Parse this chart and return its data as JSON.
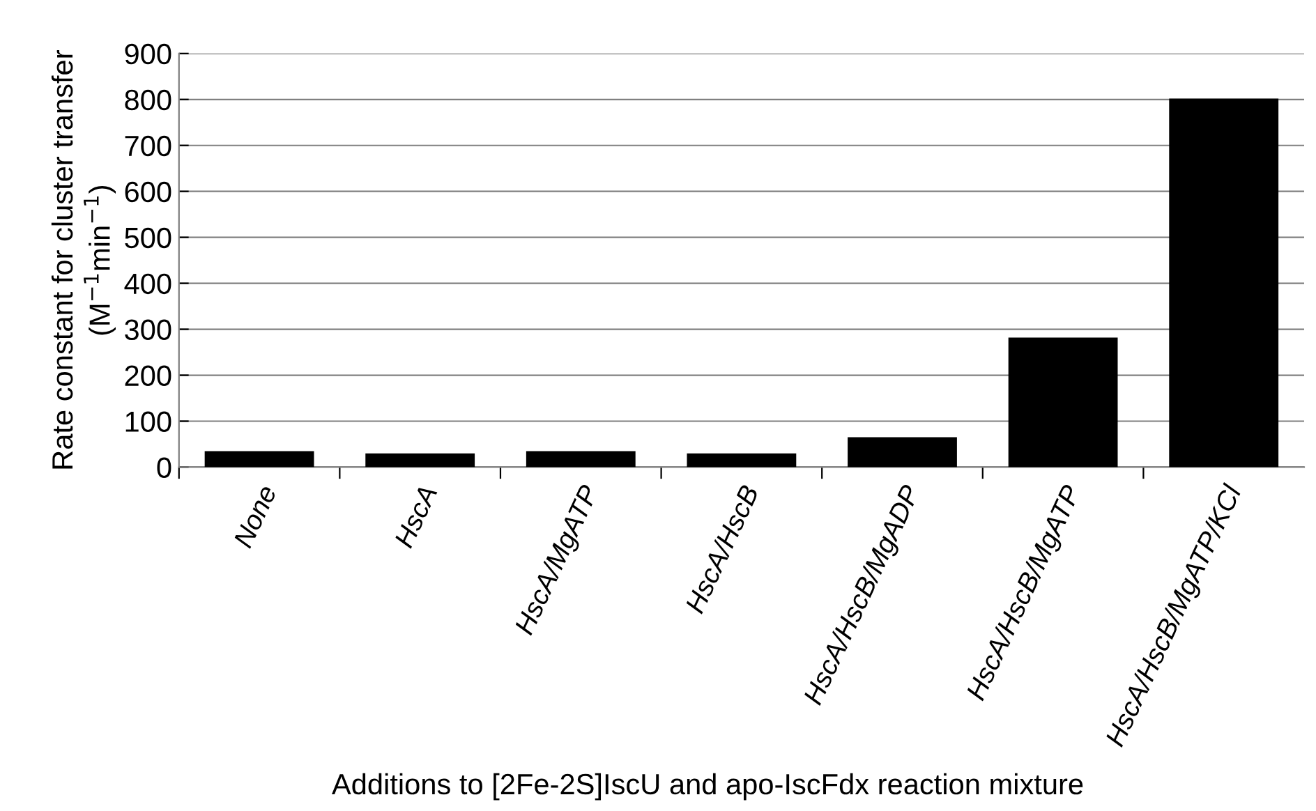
{
  "chart_data": {
    "type": "bar",
    "categories": [
      "None",
      "HscA",
      "HscA/MgATP",
      "HscA/HscB",
      "HscA/HscB/MgADP",
      "HscA/HscB/MgATP",
      "HscA/HscB/MgATP/KCl"
    ],
    "values": [
      35,
      30,
      35,
      30,
      65,
      282,
      802
    ],
    "color": "#000000",
    "xlabel": "Additions to [2Fe-2S]IscU and apo-IscFdx reaction mixture",
    "ylabel": "Rate constant for cluster transfer\n(M$^{−1}$min$^{−1}$)",
    "ylim": [
      0,
      900
    ],
    "yticks": [
      0,
      100,
      200,
      300,
      400,
      500,
      600,
      700,
      800,
      900
    ],
    "grid": "y"
  }
}
